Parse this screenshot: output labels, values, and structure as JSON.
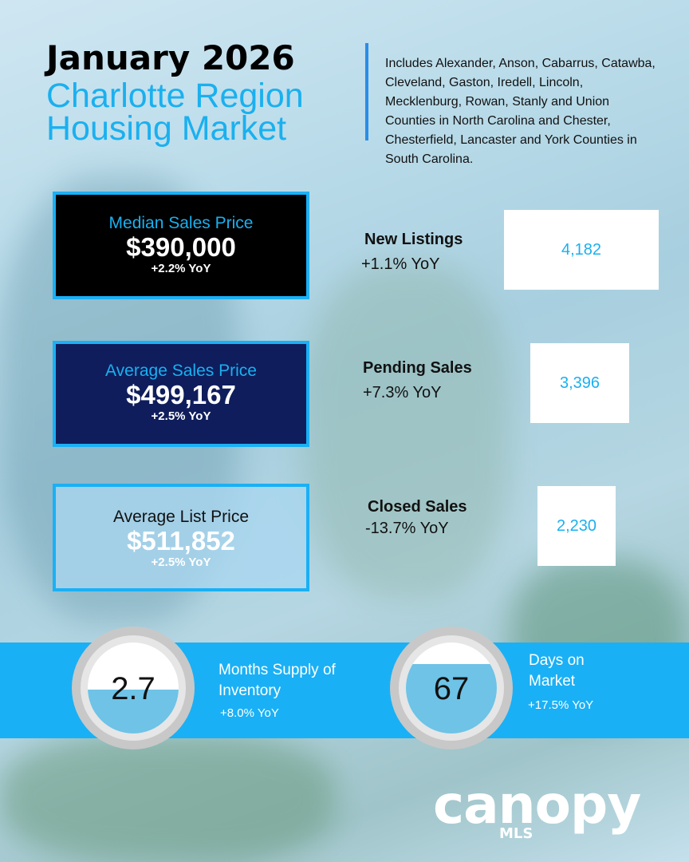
{
  "header": {
    "title": "January 2026",
    "subtitle_line1": "Charlotte Region",
    "subtitle_line2": "Housing Market",
    "description": "Includes Alexander, Anson, Cabarrus, Catawba, Cleveland, Gaston, Iredell, Lincoln, Mecklenburg, Rowan, Stanly and Union Counties in North Carolina and Chester, Chesterfield, Lancaster and York Counties in South Carolina."
  },
  "price_cards": [
    {
      "label": "Median Sales Price",
      "value": "$390,000",
      "change": "+2.2% YoY"
    },
    {
      "label": "Average Sales Price",
      "value": "$499,167",
      "change": "+2.5% YoY"
    },
    {
      "label": "Average List Price",
      "value": "$511,852",
      "change": "+2.5% YoY"
    }
  ],
  "stats": [
    {
      "label": "New Listings",
      "change": "+1.1% YoY",
      "value": "4,182"
    },
    {
      "label": "Pending Sales",
      "change": "+7.3% YoY",
      "value": "3,396"
    },
    {
      "label": "Closed Sales",
      "change": "-13.7% YoY",
      "value": "2,230"
    }
  ],
  "gauges": [
    {
      "value": "2.7",
      "label": "Months Supply of Inventory",
      "change": "+8.0% YoY"
    },
    {
      "value": "67",
      "label": "Days on Market",
      "change": "+17.5% YoY"
    }
  ],
  "logo": {
    "name": "canopy",
    "sub": "MLS"
  }
}
